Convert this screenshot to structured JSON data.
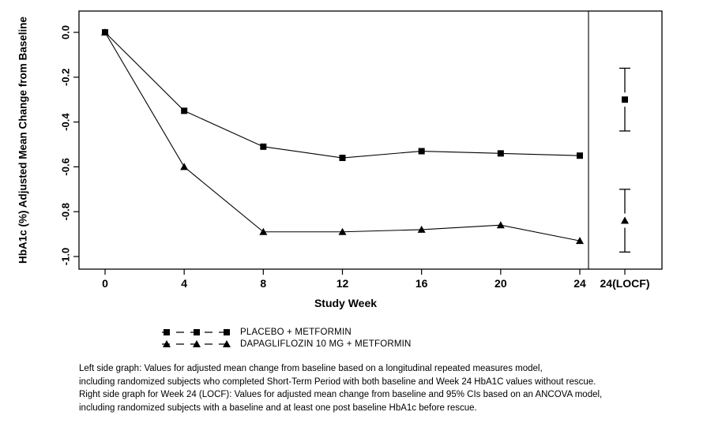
{
  "page": {
    "background": "#ffffff",
    "axis_color": "#000000"
  },
  "chart_data": {
    "type": "line",
    "title": "",
    "xlabel": "Study Week",
    "ylabel": "HbA1c (%) Adjusted Mean Change from Baseline",
    "x_ticks": [
      0,
      4,
      8,
      12,
      16,
      20,
      24
    ],
    "locf_tick_label": "24(LOCF)",
    "xlim": [
      0,
      24
    ],
    "ylim": [
      -1.0,
      0.0
    ],
    "y_ticks": [
      {
        "label": "0.0",
        "value": 0.0
      },
      {
        "label": "-0.2",
        "value": -0.2
      },
      {
        "label": "-0.4",
        "value": -0.4
      },
      {
        "label": "-0.6",
        "value": -0.6
      },
      {
        "label": "-0.8",
        "value": -0.8
      },
      {
        "label": "-1.0",
        "value": -1.0
      }
    ],
    "grid": false,
    "legend_position": "bottom-left",
    "series": [
      {
        "name": "PLACEBO + METFORMIN",
        "marker": "square",
        "color": "#000000",
        "x": [
          0,
          4,
          8,
          12,
          16,
          20,
          24
        ],
        "values": [
          0.0,
          -0.35,
          -0.51,
          -0.56,
          -0.53,
          -0.54,
          -0.55
        ],
        "locf": {
          "value": -0.3,
          "ci_high": -0.16,
          "ci_low": -0.44
        }
      },
      {
        "name": "DAPAGLIFLOZIN 10 MG + METFORMIN",
        "marker": "triangle",
        "color": "#000000",
        "x": [
          0,
          4,
          8,
          12,
          16,
          20,
          24
        ],
        "values": [
          0.0,
          -0.6,
          -0.89,
          -0.89,
          -0.88,
          -0.86,
          -0.93
        ],
        "locf": {
          "value": -0.84,
          "ci_high": -0.7,
          "ci_low": -0.98
        }
      }
    ]
  },
  "footnotes": [
    "Left side graph: Values for adjusted mean change from baseline based on a longitudinal repeated measures model,",
    "including randomized subjects who completed Short-Term Period with both baseline and Week 24 HbA1C values without rescue.",
    "Right side graph for Week 24 (LOCF): Values for adjusted mean change from baseline and 95% CIs based on an ANCOVA model,",
    "including randomized subjects with a baseline and at least one post baseline HbA1c before rescue."
  ]
}
